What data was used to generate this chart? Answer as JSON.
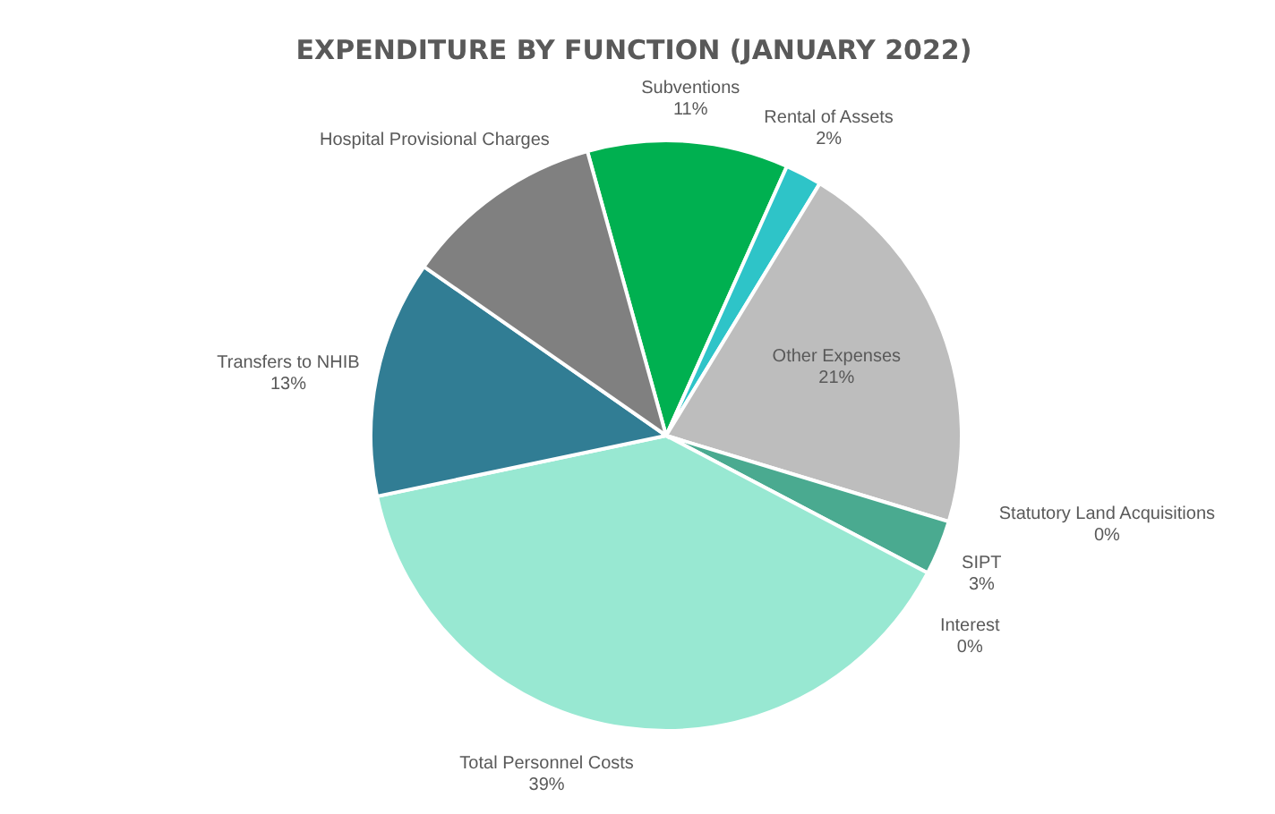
{
  "chart_data": {
    "type": "pie",
    "title": "EXPENDITURE BY FUNCTION (JANUARY 2022)",
    "categories": [
      "Subventions",
      "Rental of Assets",
      "Other Expenses",
      "Statutory Land Acquisitions",
      "SIPT",
      "Interest",
      "Total Personnel Costs",
      "Transfers to NHIB",
      "Hospital Provisional Charges"
    ],
    "values": [
      11,
      2,
      21,
      0,
      3,
      0,
      39,
      13,
      11
    ],
    "colors": [
      "#00b050",
      "#2ec4c8",
      "#bdbdbd",
      "#2f9e86",
      "#4aaa90",
      "#b8d8e0",
      "#98e8d2",
      "#317d94",
      "#808080"
    ],
    "value_labels": [
      "11%",
      "2%",
      "21%",
      "0%",
      "3%",
      "0%",
      "39%",
      "13%",
      null
    ]
  }
}
